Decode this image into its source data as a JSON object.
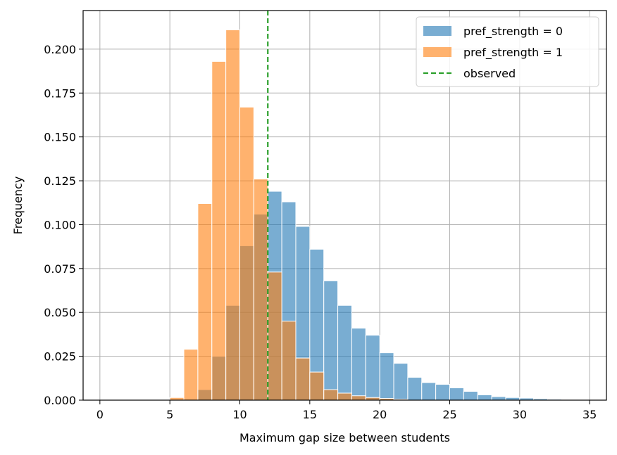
{
  "chart_data": {
    "type": "bar",
    "xlabel": "Maximum gap size between students",
    "ylabel": "Frequency",
    "xlim": [
      -1.2,
      36.2
    ],
    "ylim": [
      0,
      0.222
    ],
    "xticks": [
      0,
      5,
      10,
      15,
      20,
      25,
      30,
      35
    ],
    "yticks": [
      0.0,
      0.025,
      0.05,
      0.075,
      0.1,
      0.125,
      0.15,
      0.175,
      0.2
    ],
    "ytick_labels": [
      "0.000",
      "0.025",
      "0.050",
      "0.075",
      "0.100",
      "0.125",
      "0.150",
      "0.175",
      "0.200"
    ],
    "grid": true,
    "legend_position": "top-right",
    "bin_width": 1,
    "series": [
      {
        "name": "pref_strength = 0",
        "color": "#1f77b4",
        "bin_starts": [
          7,
          8,
          9,
          10,
          11,
          12,
          13,
          14,
          15,
          16,
          17,
          18,
          19,
          20,
          21,
          22,
          23,
          24,
          25,
          26,
          27,
          28,
          29,
          30,
          31,
          32,
          33
        ],
        "values": [
          0.006,
          0.025,
          0.054,
          0.088,
          0.106,
          0.119,
          0.113,
          0.099,
          0.086,
          0.068,
          0.054,
          0.041,
          0.037,
          0.027,
          0.021,
          0.013,
          0.01,
          0.009,
          0.007,
          0.005,
          0.003,
          0.002,
          0.0015,
          0.0012,
          0.0008,
          0.0005,
          0.0003
        ]
      },
      {
        "name": "pref_strength = 1",
        "color": "#ff7f0e",
        "bin_starts": [
          5,
          6,
          7,
          8,
          9,
          10,
          11,
          12,
          13,
          14,
          15,
          16,
          17,
          18,
          19,
          20,
          21
        ],
        "values": [
          0.0015,
          0.029,
          0.112,
          0.193,
          0.211,
          0.167,
          0.126,
          0.073,
          0.045,
          0.024,
          0.016,
          0.006,
          0.004,
          0.0025,
          0.0015,
          0.001,
          0.0005
        ]
      }
    ],
    "reference_lines": [
      {
        "name": "observed",
        "x": 12,
        "color": "#2ca02c",
        "style": "dashed"
      }
    ]
  }
}
